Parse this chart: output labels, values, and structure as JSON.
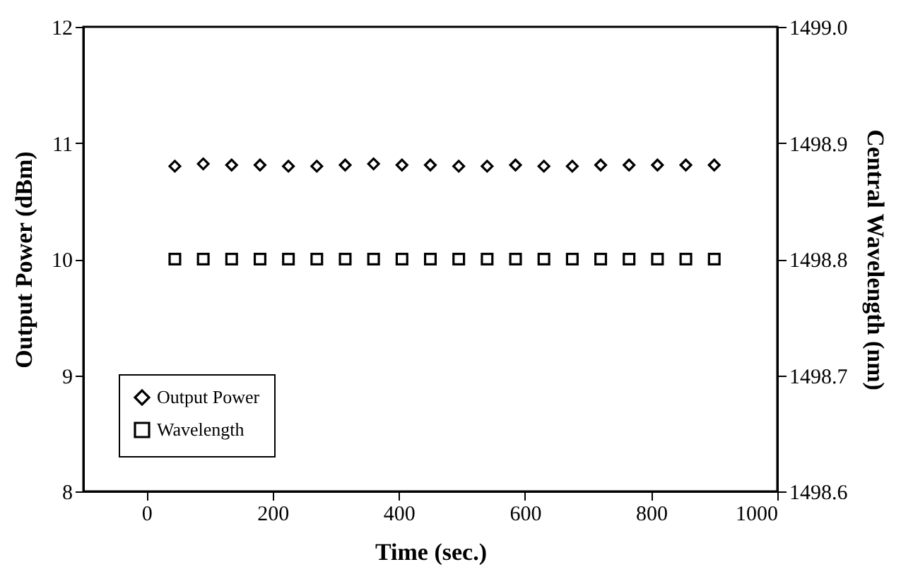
{
  "chart_data": {
    "type": "scatter",
    "xlabel": "Time (sec.)",
    "ylabel": "Output Power (dBm)",
    "y2label": "Central Wavelength (nm)",
    "x": [
      45,
      90,
      135,
      180,
      225,
      270,
      315,
      360,
      405,
      450,
      495,
      540,
      585,
      630,
      675,
      720,
      765,
      810,
      855,
      900
    ],
    "xlim": [
      -100,
      1000
    ],
    "xticks": [
      0,
      200,
      400,
      600,
      800,
      1000
    ],
    "ylim": [
      8,
      12
    ],
    "yticks": [
      8,
      9,
      10,
      11,
      12
    ],
    "y2lim": [
      1498.6,
      1499.0
    ],
    "y2ticks": [
      {
        "value": 1498.6,
        "label": "1498.6"
      },
      {
        "value": 1498.7,
        "label": "1498.7"
      },
      {
        "value": 1498.8,
        "label": "1498.8"
      },
      {
        "value": 1498.9,
        "label": "1498.9"
      },
      {
        "value": 1499.0,
        "label": "1499.0"
      }
    ],
    "series": [
      {
        "name": "Output Power",
        "color": "#000000",
        "marker": "diamond",
        "values": [
          10.8,
          10.82,
          10.81,
          10.81,
          10.8,
          10.8,
          10.81,
          10.82,
          10.81,
          10.81,
          10.8,
          10.8,
          10.81,
          10.8,
          10.8,
          10.81,
          10.81,
          10.81,
          10.81,
          10.81
        ]
      },
      {
        "name": "Wavelength",
        "color": "#000000",
        "marker": "square",
        "axis": "y2",
        "values": [
          1498.8,
          1498.8,
          1498.8,
          1498.8,
          1498.8,
          1498.8,
          1498.8,
          1498.8,
          1498.8,
          1498.8,
          1498.8,
          1498.8,
          1498.8,
          1498.8,
          1498.8,
          1498.8,
          1498.8,
          1498.8,
          1498.8,
          1498.8
        ]
      }
    ],
    "legend": "bottom left",
    "grid": false
  }
}
